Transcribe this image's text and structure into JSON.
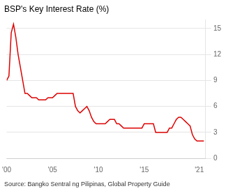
{
  "chart_data": {
    "type": "line",
    "title": "BSP's Key Interest Rate (%)",
    "source": "Source: Bangko Sentral ng Pilipinas, Global Property Guide",
    "color": "#dd0000",
    "x": [
      2000.0,
      2000.25,
      2000.5,
      2000.75,
      2001.0,
      2001.25,
      2001.5,
      2001.75,
      2002.0,
      2002.25,
      2002.5,
      2002.75,
      2003.0,
      2003.25,
      2003.5,
      2003.75,
      2004.0,
      2004.25,
      2004.5,
      2004.75,
      2005.0,
      2005.25,
      2005.5,
      2005.75,
      2006.0,
      2006.25,
      2006.5,
      2006.75,
      2007.0,
      2007.25,
      2007.5,
      2007.75,
      2008.0,
      2008.25,
      2008.5,
      2008.75,
      2009.0,
      2009.25,
      2009.5,
      2009.75,
      2010.0,
      2010.25,
      2010.5,
      2010.75,
      2011.0,
      2011.25,
      2011.5,
      2011.75,
      2012.0,
      2012.25,
      2012.5,
      2012.75,
      2013.0,
      2013.25,
      2013.5,
      2013.75,
      2014.0,
      2014.25,
      2014.5,
      2014.75,
      2015.0,
      2015.25,
      2015.5,
      2015.75,
      2016.0,
      2016.25,
      2016.5,
      2016.75,
      2017.0,
      2017.25,
      2017.5,
      2017.75,
      2018.0,
      2018.25,
      2018.5,
      2018.75,
      2019.0,
      2019.25,
      2019.5,
      2019.75,
      2020.0,
      2020.25,
      2020.5,
      2020.75,
      2021.0,
      2021.5
    ],
    "values": [
      9.0,
      9.5,
      14.5,
      15.5,
      14.0,
      12.0,
      10.5,
      9.0,
      7.5,
      7.5,
      7.25,
      7.0,
      7.0,
      7.0,
      6.75,
      6.75,
      6.75,
      6.75,
      7.0,
      7.0,
      7.0,
      7.25,
      7.5,
      7.5,
      7.5,
      7.5,
      7.5,
      7.5,
      7.5,
      7.5,
      6.0,
      5.5,
      5.25,
      5.5,
      5.75,
      6.0,
      5.5,
      4.75,
      4.25,
      4.0,
      4.0,
      4.0,
      4.0,
      4.0,
      4.25,
      4.5,
      4.5,
      4.5,
      4.0,
      4.0,
      3.75,
      3.5,
      3.5,
      3.5,
      3.5,
      3.5,
      3.5,
      3.5,
      3.5,
      3.5,
      4.0,
      4.0,
      4.0,
      4.0,
      4.0,
      3.0,
      3.0,
      3.0,
      3.0,
      3.0,
      3.0,
      3.5,
      3.5,
      4.0,
      4.5,
      4.75,
      4.75,
      4.5,
      4.25,
      4.0,
      3.75,
      2.75,
      2.25,
      2.0,
      2.0,
      2.0
    ],
    "xlim": [
      2000,
      2021.7
    ],
    "xticks": [
      {
        "value": 2000,
        "label": "'00"
      },
      {
        "value": 2005,
        "label": "'05"
      },
      {
        "value": 2010,
        "label": "'10"
      },
      {
        "value": 2015,
        "label": "'15"
      },
      {
        "value": 2021,
        "label": "'21"
      }
    ],
    "ylim": [
      0,
      16
    ],
    "yticks": [
      0,
      3,
      6,
      9,
      12,
      15
    ],
    "grid": true
  }
}
